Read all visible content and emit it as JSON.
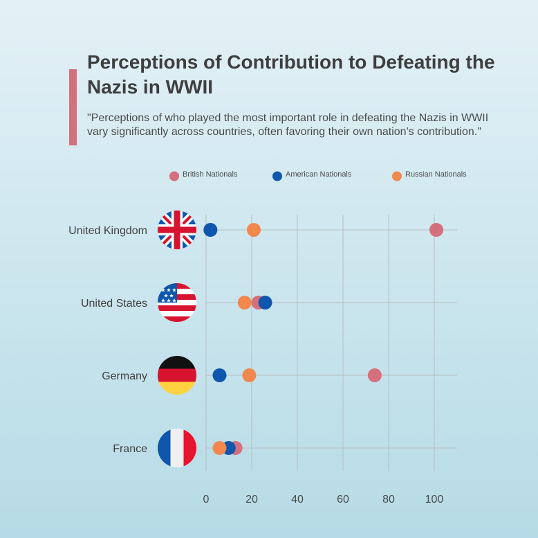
{
  "title": "Perceptions of Contribution to Defeating the Nazis in WWII",
  "subtitle": "\"Perceptions of who played the most important role in defeating the Nazis in WWII vary significantly across countries, often favoring their own nation's contribution.\"",
  "chart_data": {
    "type": "scatter",
    "title": "",
    "xlabel": "",
    "ylabel": "",
    "xlim": [
      0,
      110
    ],
    "xticks": [
      0,
      20,
      40,
      60,
      80,
      100
    ],
    "grid": true,
    "legend_position": "top",
    "categories": [
      "United Kingdom",
      "United States",
      "Germany",
      "France"
    ],
    "category_flags": [
      "uk-flag-icon",
      "us-flag-icon",
      "germany-flag-icon",
      "france-flag-icon"
    ],
    "series": [
      {
        "name": "British Nationals",
        "color": "#d46f7c",
        "values": [
          100,
          22,
          73,
          12
        ]
      },
      {
        "name": "American Nationals",
        "color": "#0e57ad",
        "values": [
          1,
          25,
          5,
          9
        ]
      },
      {
        "name": "Russian Nationals",
        "color": "#f2884d",
        "values": [
          20,
          16,
          18,
          5
        ]
      }
    ]
  }
}
